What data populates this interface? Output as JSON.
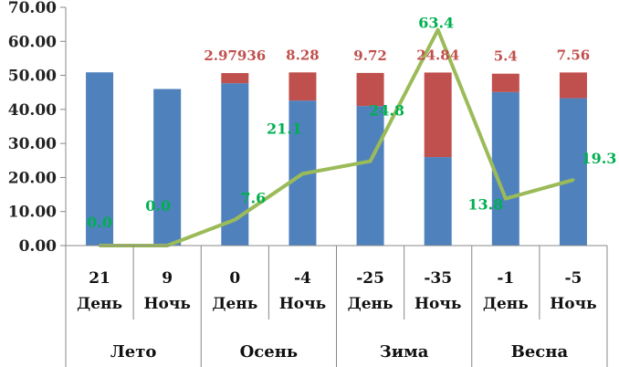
{
  "chart_data": {
    "type": "bar",
    "stacked": true,
    "y_ticks": [
      "0.00",
      "10.00",
      "20.00",
      "30.00",
      "40.00",
      "50.00",
      "60.00",
      "70.00"
    ],
    "ylim": [
      0,
      70
    ],
    "grid": false,
    "categories": [
      {
        "temp": "21",
        "period": "День"
      },
      {
        "temp": "9",
        "period": "Ночь"
      },
      {
        "temp": "0",
        "period": "День"
      },
      {
        "temp": "-4",
        "period": "Ночь"
      },
      {
        "temp": "-25",
        "period": "День"
      },
      {
        "temp": "-35",
        "period": "Ночь"
      },
      {
        "temp": "-1",
        "period": "День"
      },
      {
        "temp": "-5",
        "period": "Ночь"
      }
    ],
    "seasons": [
      "Лето",
      "Осень",
      "Зима",
      "Весна"
    ],
    "series": [
      {
        "color": "#4f81bd",
        "values": [
          50.9,
          46.0,
          47.7,
          42.6,
          41.0,
          26.0,
          45.1,
          43.3
        ]
      },
      {
        "color": "#c0504d",
        "values": [
          0,
          0,
          2.97936,
          8.28,
          9.72,
          24.84,
          5.4,
          7.56
        ],
        "labels": [
          "",
          "",
          "2.97936",
          "8.28",
          "9.72",
          "24.84",
          "5.4",
          "7.56"
        ]
      },
      {
        "type": "line",
        "color": "#9bbb59",
        "label_color": "#00b050",
        "values": [
          0.0,
          0.0,
          7.6,
          21.1,
          24.8,
          63.4,
          13.8,
          19.3
        ],
        "labels": [
          "0.0",
          "0.0",
          "7.6",
          "21.1",
          "24.8",
          "63.4",
          "13.8",
          "19.3"
        ]
      }
    ]
  }
}
